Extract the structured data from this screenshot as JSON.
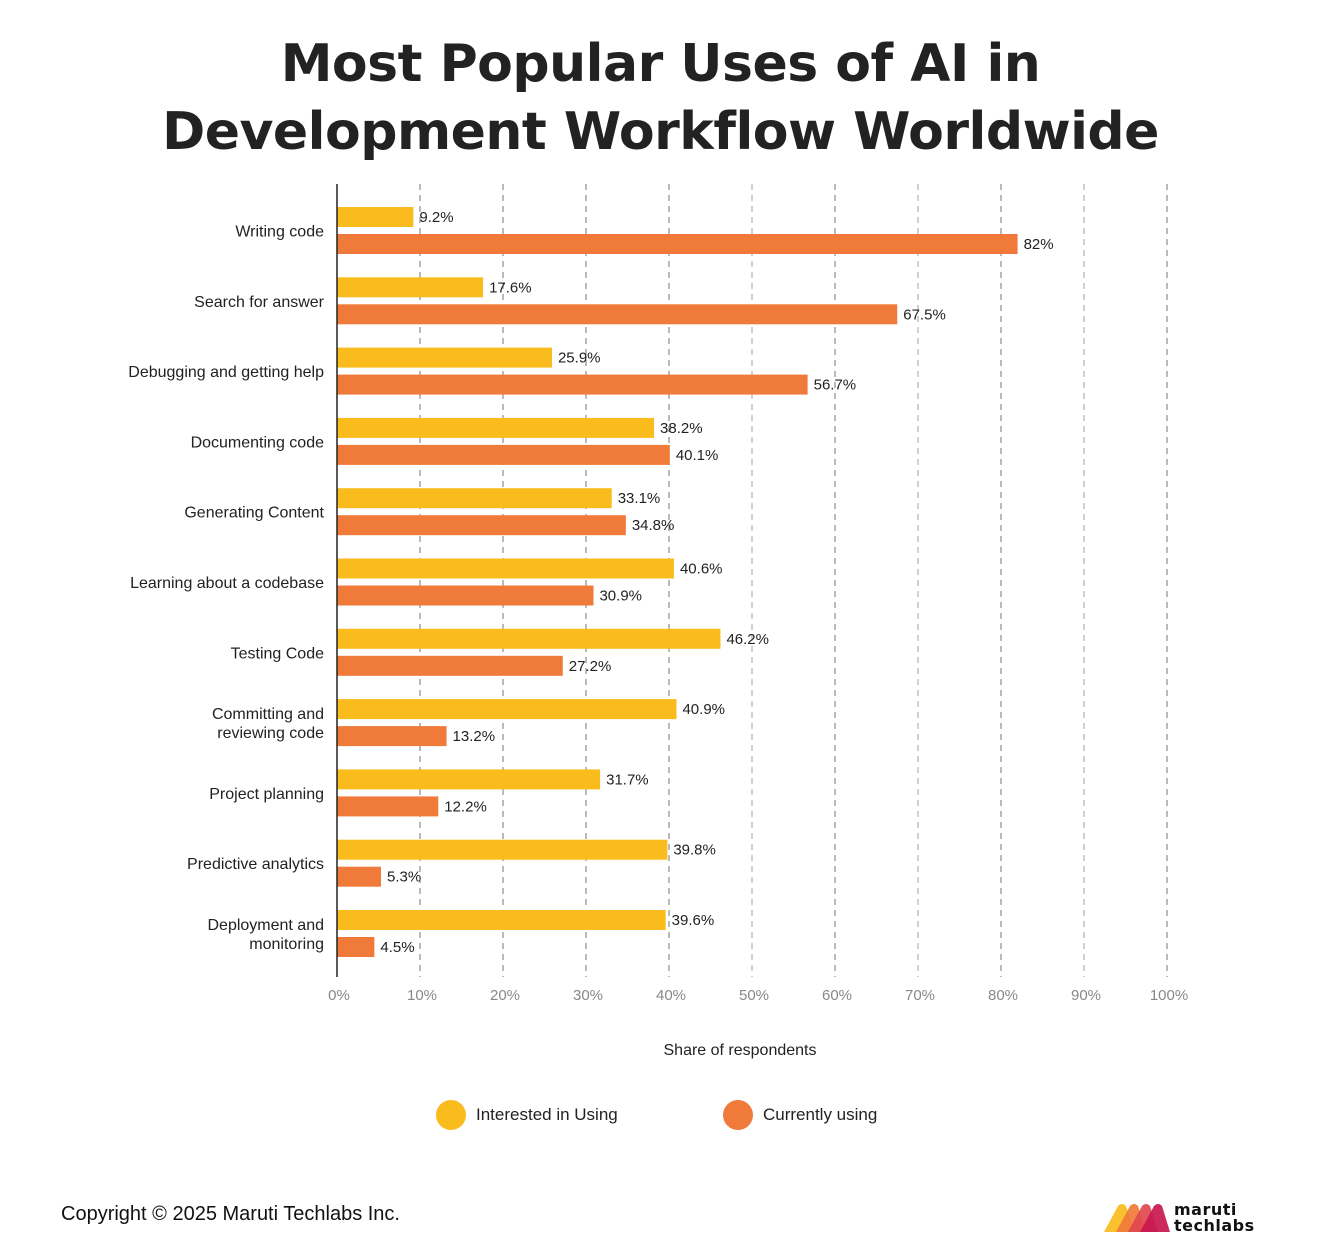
{
  "title_line1": "Most Popular Uses of AI in",
  "title_line2": "Development Workflow Worldwide",
  "footer": {
    "copyright": "Copyright © 2025 Maruti Techlabs Inc."
  },
  "logo": {
    "line1": "maruti",
    "line2": "techlabs"
  },
  "legend": {
    "interested": "Interested in Using",
    "currently": "Currently using"
  },
  "colors": {
    "interested": "#F9BC1C",
    "currently": "#F07A39",
    "text": "#222222",
    "tick": "#888888",
    "grid": "#555555",
    "logo": [
      "#F9BC1C",
      "#F07A39",
      "#E0484F",
      "#C8174F"
    ]
  },
  "chart_data": {
    "type": "bar",
    "orientation": "horizontal",
    "title": "Most Popular Uses of AI in Development Workflow Worldwide",
    "xlabel": "Share of respondents",
    "ylabel": "",
    "xlim": [
      0,
      100
    ],
    "x_ticks": [
      "0%",
      "10%",
      "20%",
      "30%",
      "40%",
      "50%",
      "60%",
      "70%",
      "80%",
      "90%",
      "100%"
    ],
    "grid": "vertical dashed",
    "legend_position": "bottom",
    "categories": [
      [
        "Writing code"
      ],
      [
        "Search for answer"
      ],
      [
        "Debugging and getting help"
      ],
      [
        "Documenting code"
      ],
      [
        "Generating Content"
      ],
      [
        "Learning about a codebase"
      ],
      [
        "Testing Code"
      ],
      [
        "Committing and",
        "reviewing code"
      ],
      [
        "Project planning"
      ],
      [
        "Predictive analytics"
      ],
      [
        "Deployment and",
        "monitoring"
      ]
    ],
    "series": [
      {
        "name": "Interested in Using",
        "color": "#F9BC1C",
        "values": [
          9.2,
          17.6,
          25.9,
          38.2,
          33.1,
          40.6,
          46.2,
          40.9,
          31.7,
          39.8,
          39.6
        ],
        "labels": [
          "9.2%",
          "17.6%",
          "25.9%",
          "38.2%",
          "33.1%",
          "40.6%",
          "46.2%",
          "40.9%",
          "31.7%",
          "39.8%",
          "39.6%"
        ]
      },
      {
        "name": "Currently using",
        "color": "#F07A39",
        "values": [
          82,
          67.5,
          56.7,
          40.1,
          34.8,
          30.9,
          27.2,
          13.2,
          12.2,
          5.3,
          4.5
        ],
        "labels": [
          "82%",
          "67.5%",
          "56.7%",
          "40.1%",
          "34.8%",
          "30.9%",
          "27.2%",
          "13.2%",
          "12.2%",
          "5.3%",
          "4.5%"
        ]
      }
    ]
  }
}
